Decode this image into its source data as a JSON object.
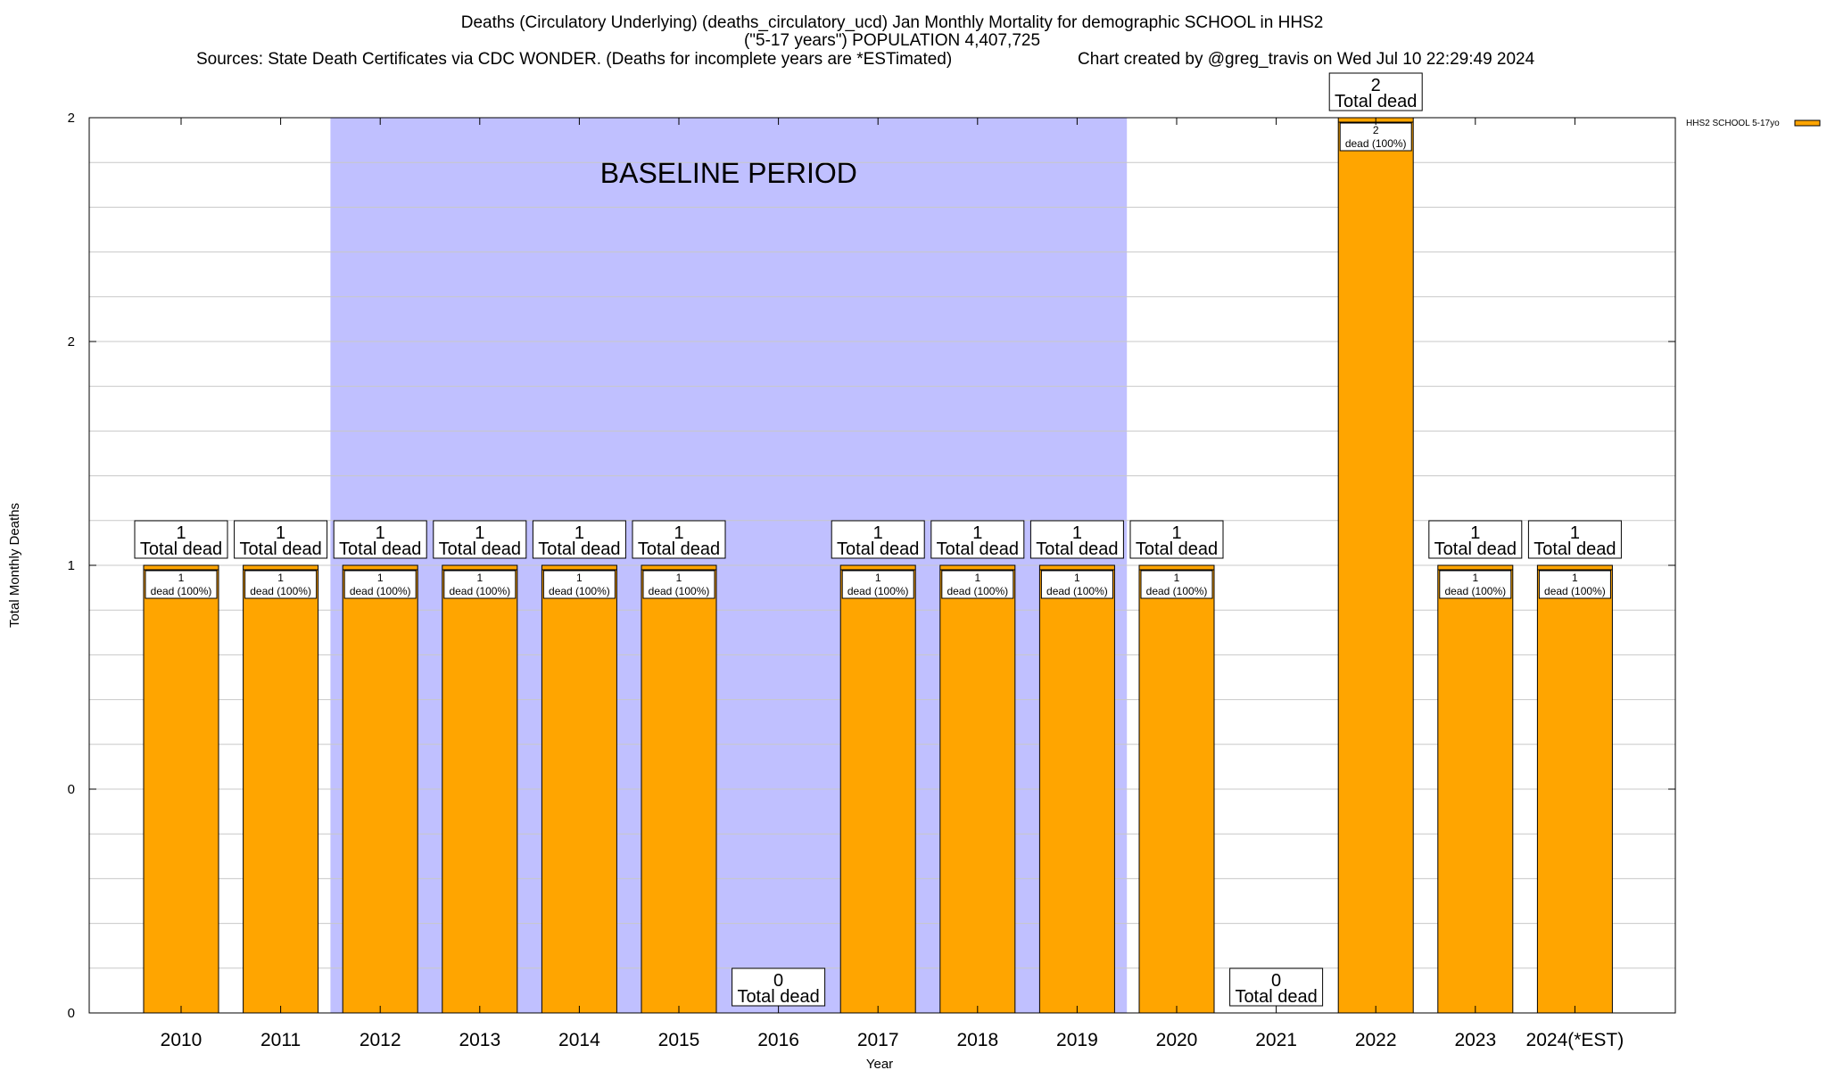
{
  "header": {
    "title_line1": "Deaths (Circulatory Underlying) (deaths_circulatory_ucd) Jan Monthly Mortality for demographic SCHOOL in HHS2",
    "title_line2": "(\"5-17 years\") POPULATION 4,407,725",
    "sources": "Sources: State Death Certificates via CDC WONDER. (Deaths for incomplete years are *ESTimated)",
    "credit": "Chart created by @greg_travis on Wed Jul 10 22:29:49 2024"
  },
  "chart_data": {
    "type": "bar",
    "xlabel": "Year",
    "ylabel": "Total Monthly Deaths",
    "ylim": [
      0,
      2
    ],
    "y_tick_labels": [
      "0",
      "0",
      "1",
      "2",
      "2"
    ],
    "grid": true,
    "categories": [
      "2010",
      "2011",
      "2012",
      "2013",
      "2014",
      "2015",
      "2016",
      "2017",
      "2018",
      "2019",
      "2020",
      "2021",
      "2022",
      "2023",
      "2024(*EST)"
    ],
    "series": [
      {
        "name": "HHS2 SCHOOL 5-17yo",
        "color": "#ffa500",
        "values": [
          1,
          1,
          1,
          1,
          1,
          1,
          0,
          1,
          1,
          1,
          1,
          0,
          2,
          1,
          1
        ]
      }
    ],
    "total_labels": [
      "1",
      "1",
      "1",
      "1",
      "1",
      "1",
      "0",
      "1",
      "1",
      "1",
      "1",
      "0",
      "2",
      "1",
      "1"
    ],
    "total_suffix": "Total dead",
    "inner_suffix": "dead (100%)",
    "baseline": {
      "label": "BASELINE PERIOD",
      "start": "2012",
      "end": "2019",
      "color": "#c0c0ff"
    },
    "legend_position": "top-right"
  }
}
